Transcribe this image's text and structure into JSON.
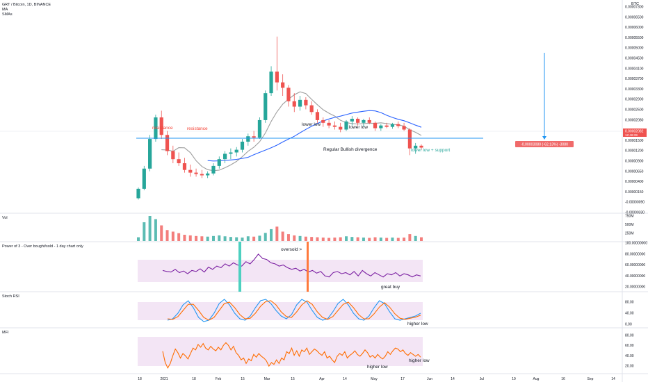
{
  "header": {
    "symbol": "GRT / Bitcoin, 1D, BINANCE",
    "indicator1": "MA",
    "indicator2": "SMAs",
    "currency": "BTC"
  },
  "panels": {
    "vol_title": "Vol",
    "pow3_title": "Power of 3 - Over bought/sold - 1 day chart only",
    "stoch_title": "Stoch RSI",
    "mfi_title": "MFI"
  },
  "price_axis": [
    "0.00007300",
    "0.00006500",
    "0.00006000",
    "0.00005500",
    "0.00005000",
    "0.00004500",
    "0.00004100",
    "0.00003700",
    "0.00003300",
    "0.00002900",
    "0.00002500",
    "0.00002080",
    "0.00001800",
    "0.00001500",
    "0.00001200",
    "0.00000900",
    "0.00000650",
    "0.00000400",
    "0.00000150",
    "-0.00000090",
    "-0.00000330"
  ],
  "price_marker": {
    "value": "0.00002082",
    "countdown": "12:46:39"
  },
  "measure_label": "-0.00003080 (-62.13%) -3080",
  "vol_axis": [
    "750M",
    "500M",
    "250M"
  ],
  "pow3_axis": [
    "100.00000000",
    "80.00000000",
    "60.00000000",
    "40.00000000",
    "20.00000000"
  ],
  "stoch_axis": [
    "80.00",
    "40.00",
    "0.00"
  ],
  "mfi_axis": [
    "80.00",
    "60.00",
    "40.00",
    "20.00"
  ],
  "time_axis": [
    "18",
    "2021",
    "18",
    "Feb",
    "15",
    "Mar",
    "15",
    "Apr",
    "14",
    "May",
    "17",
    "Jun",
    "14",
    "Jul",
    "19",
    "Aug",
    "16",
    "Sep",
    "14"
  ],
  "annotations": {
    "resistance1": "resistance",
    "resistance2": "resistance",
    "lower_low1": "lower low",
    "lower_low2": "lower low",
    "divergence": "Regular Bullish divergence",
    "lower_low_support": "lower low + support",
    "oversold": "oversold >",
    "great_buy": "great buy",
    "stoch_higher_low": "higher low",
    "mfi_higher_low1": "higher low",
    "mfi_higher_low2": "higher low"
  },
  "colors": {
    "up": "#26a69a",
    "down": "#ef5350",
    "ma_blue": "#2962ff",
    "ma_gray": "#9e9e9e",
    "support_line": "#2196f3",
    "band": "#f3e5f5",
    "pow3_line": "#7b1fa2",
    "stoch_k": "#2196f3",
    "stoch_d": "#ff6d00",
    "mfi_line": "#ff6d00",
    "annotation_red": "#f44336",
    "annotation_teal": "#26a69a"
  },
  "chart_data": [
    {
      "type": "candlestick",
      "title": "GRT / Bitcoin, 1D, BINANCE",
      "y_unit": "BTC",
      "support_level": 1.9e-05,
      "measure": {
        "from": 4.96e-05,
        "to": 1.9e-05,
        "change": "-0.00003080 (-62.13%) -3080"
      },
      "ohlc": [
        [
          2e-06,
          6e-06,
          1.5e-06,
          5.5e-06
        ],
        [
          5.5e-06,
          1.4e-05,
          5e-06,
          1.3e-05
        ],
        [
          1.3e-05,
          2.55e-05,
          1.2e-05,
          2.4e-05
        ],
        [
          2.4e-05,
          3.3e-05,
          2.3e-05,
          3.2e-05
        ],
        [
          3.2e-05,
          3.45e-05,
          2.4e-05,
          2.55e-05
        ],
        [
          2.55e-05,
          2.7e-05,
          1.8e-05,
          1.95e-05
        ],
        [
          1.95e-05,
          2.15e-05,
          1.5e-05,
          1.65e-05
        ],
        [
          1.65e-05,
          1.9e-05,
          1.4e-05,
          1.5e-05
        ],
        [
          1.5e-05,
          1.7e-05,
          1.15e-05,
          1.25e-05
        ],
        [
          1.25e-05,
          1.45e-05,
          1e-05,
          1.15e-05
        ],
        [
          1.15e-05,
          1.3e-05,
          1e-05,
          1.1e-05
        ],
        [
          1.1e-05,
          1.25e-05,
          9.5e-06,
          1.05e-05
        ],
        [
          1.05e-05,
          1.2e-05,
          9.5e-06,
          1.12e-05
        ],
        [
          1.12e-05,
          1.5e-05,
          1.05e-05,
          1.4e-05
        ],
        [
          1.4e-05,
          1.75e-05,
          1.3e-05,
          1.65e-05
        ],
        [
          1.65e-05,
          1.95e-05,
          1.5e-05,
          1.85e-05
        ],
        [
          1.85e-05,
          2.05e-05,
          1.65e-05,
          1.9e-05
        ],
        [
          1.9e-05,
          2.1e-05,
          1.75e-05,
          2e-05
        ],
        [
          2e-05,
          2.4e-05,
          1.9e-05,
          2.3e-05
        ],
        [
          2.3e-05,
          2.6e-05,
          2.15e-05,
          2.5e-05
        ],
        [
          2.5e-05,
          2.7e-05,
          2.3e-05,
          2.45e-05
        ],
        [
          2.45e-05,
          3.2e-05,
          2.4e-05,
          3.1e-05
        ],
        [
          3.1e-05,
          4.2e-05,
          3e-05,
          4.1e-05
        ],
        [
          4.1e-05,
          5.1e-05,
          4e-05,
          4.9e-05
        ],
        [
          4.9e-05,
          6.2e-05,
          4.2e-05,
          4.5e-05
        ],
        [
          4.5e-05,
          4.8e-05,
          4e-05,
          4.3e-05
        ],
        [
          4.3e-05,
          4.4e-05,
          3.6e-05,
          3.8e-05
        ],
        [
          3.8e-05,
          4.1e-05,
          3.4e-05,
          3.6e-05
        ],
        [
          3.6e-05,
          4e-05,
          3.45e-05,
          3.85e-05
        ],
        [
          3.85e-05,
          3.95e-05,
          3.5e-05,
          3.65e-05
        ],
        [
          3.65e-05,
          3.8e-05,
          3.3e-05,
          3.4e-05
        ],
        [
          3.4e-05,
          3.5e-05,
          3e-05,
          3.1e-05
        ],
        [
          3.1e-05,
          3.2e-05,
          2.85e-05,
          3e-05
        ],
        [
          3e-05,
          3.1e-05,
          2.8e-05,
          2.9e-05
        ],
        [
          2.9e-05,
          3.05e-05,
          2.75e-05,
          2.85e-05
        ],
        [
          2.85e-05,
          3e-05,
          2.65e-05,
          2.75e-05
        ],
        [
          2.75e-05,
          3.1e-05,
          2.7e-05,
          3.05e-05
        ],
        [
          3.05e-05,
          3.25e-05,
          2.9e-05,
          3.15e-05
        ],
        [
          3.15e-05,
          3.2e-05,
          2.9e-05,
          3e-05
        ],
        [
          3e-05,
          3.15e-05,
          2.85e-05,
          3.1e-05
        ],
        [
          3.1e-05,
          3.2e-05,
          2.95e-05,
          3e-05
        ],
        [
          3e-05,
          3.05e-05,
          2.7e-05,
          2.8e-05
        ],
        [
          2.8e-05,
          2.95e-05,
          2.7e-05,
          2.9e-05
        ],
        [
          2.9e-05,
          3e-05,
          2.8e-05,
          2.85e-05
        ],
        [
          2.85e-05,
          3e-05,
          2.78e-05,
          2.95e-05
        ],
        [
          2.95e-05,
          3.05e-05,
          2.8e-05,
          2.88e-05
        ],
        [
          2.88e-05,
          3e-05,
          2.7e-05,
          2.75e-05
        ],
        [
          2.75e-05,
          2.8e-05,
          1.8e-05,
          2.05e-05
        ],
        [
          2.05e-05,
          2.25e-05,
          1.85e-05,
          2.15e-05
        ],
        [
          2.15e-05,
          2.2e-05,
          2e-05,
          2.08e-05
        ]
      ]
    },
    {
      "type": "bar",
      "title": "Vol",
      "values": [
        120,
        600,
        800,
        700,
        500,
        350,
        300,
        250,
        200,
        180,
        160,
        150,
        140,
        160,
        180,
        150,
        130,
        120,
        110,
        150,
        140,
        170,
        260,
        380,
        460,
        300,
        220,
        180,
        160,
        140,
        130,
        120,
        110,
        100,
        110,
        120,
        150,
        130,
        120,
        110,
        100,
        120,
        110,
        100,
        110,
        100,
        110,
        220,
        160,
        120
      ]
    },
    {
      "type": "line",
      "title": "Power of 3 - Over bought/sold - 1 day chart only",
      "ylim": [
        20,
        100
      ],
      "values": [
        50,
        48,
        47,
        52,
        46,
        49,
        44,
        50,
        48,
        53,
        47,
        56,
        52,
        58,
        55,
        62,
        58,
        64,
        60,
        58,
        66,
        62,
        70,
        80,
        72,
        70,
        64,
        62,
        58,
        60,
        55,
        52,
        54,
        49,
        52,
        47,
        50,
        45,
        48,
        40,
        38,
        46,
        48,
        44,
        46,
        42,
        48,
        40,
        50,
        44,
        40,
        46,
        42,
        38,
        44,
        42,
        46,
        40,
        44,
        42,
        38,
        42,
        40
      ]
    },
    {
      "type": "line",
      "title": "Stoch RSI",
      "ylim": [
        0,
        100
      ],
      "series": [
        {
          "values": [
            15,
            20,
            40,
            70,
            85,
            60,
            25,
            10,
            15,
            40,
            75,
            90,
            70,
            40,
            20,
            15,
            30,
            60,
            85,
            90,
            75,
            50,
            30,
            20,
            35,
            70,
            90,
            80,
            50,
            25,
            15,
            20,
            45,
            75,
            90,
            70,
            40,
            20,
            15,
            30,
            60,
            85,
            75,
            45,
            20,
            15,
            20,
            25,
            30,
            40
          ]
        },
        {
          "values": [
            20,
            18,
            28,
            50,
            72,
            72,
            50,
            25,
            15,
            25,
            50,
            75,
            80,
            60,
            35,
            20,
            22,
            40,
            65,
            82,
            85,
            70,
            45,
            28,
            25,
            45,
            70,
            85,
            72,
            45,
            25,
            18,
            28,
            50,
            72,
            80,
            60,
            35,
            20,
            20,
            38,
            62,
            78,
            62,
            38,
            22,
            18,
            22,
            26,
            33
          ]
        }
      ]
    },
    {
      "type": "line",
      "title": "MFI",
      "ylim": [
        10,
        90
      ],
      "values": [
        55,
        30,
        18,
        28,
        45,
        60,
        52,
        40,
        50,
        45,
        38,
        50,
        62,
        58,
        70,
        64,
        72,
        62,
        58,
        66,
        60,
        56,
        64,
        58,
        68,
        74,
        68,
        58,
        66,
        52,
        46,
        36,
        40,
        28,
        38,
        34,
        48,
        42,
        50,
        44,
        40,
        34,
        22,
        30,
        26,
        36,
        28,
        40,
        36,
        54,
        50,
        62,
        46,
        56,
        44,
        58,
        54,
        62,
        48,
        54,
        60,
        56,
        50,
        46,
        54,
        40,
        44,
        36,
        30,
        44,
        50,
        46,
        54,
        40,
        46,
        50,
        56,
        48,
        44,
        50,
        58,
        52,
        42,
        46,
        40,
        48,
        42,
        38,
        44,
        54,
        48,
        56,
        62,
        60,
        54,
        58,
        50,
        46,
        52,
        48,
        44,
        48,
        42
      ]
    }
  ]
}
